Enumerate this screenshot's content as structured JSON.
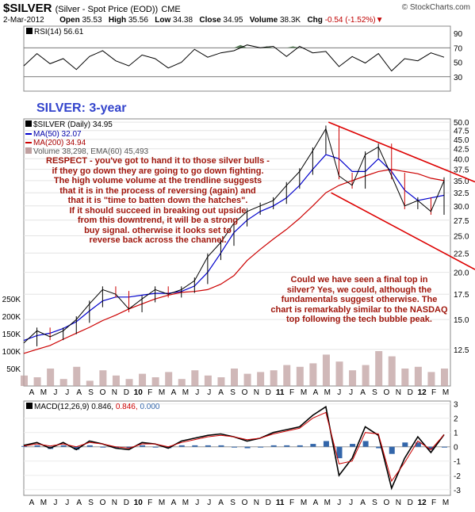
{
  "header": {
    "symbol": "$SILVER",
    "description": "(Silver - Spot Price (EOD))",
    "exchange": "CME",
    "date": "2-Mar-2012",
    "open_label": "Open",
    "open": "35.53",
    "high_label": "High",
    "high": "35.56",
    "low_label": "Low",
    "low": "34.38",
    "close_label": "Close",
    "close": "34.95",
    "volume_label": "Volume",
    "volume": "38.3K",
    "chg_label": "Chg",
    "chg": "-0.54 (-1.52%)",
    "credit": "© StockCharts.com"
  },
  "chart_label": "SILVER: 3-year",
  "rsi_label": "RSI(14) 56.61",
  "legend": {
    "price": "$SILVER (Daily) 34.95",
    "ma50": "MA(50) 32.07",
    "ma200": "MA(200) 34.94",
    "volume": "Volume 38,298, EMA(60) 45,493"
  },
  "macd_label_name": "MACD(12,26,9)",
  "macd_label_v1": "0.846,",
  "macd_label_v2": "0.846,",
  "macd_label_v3": "0.000",
  "annotations": {
    "respect": [
      "RESPECT - you've got to hand it to those silver bulls -",
      "if they go down they are going to go down fighting.",
      "The high volume volume at the trendline suggests",
      "that it is in the process of reversing (again) and",
      "that it is \"time to batten down the hatches\".",
      "If it should succeed in breaking out upside",
      "from this downtrend, it will be a strong",
      "buy signal. otherwise it looks set to",
      "reverse back across the channel."
    ],
    "final_top": [
      "Could we have seen a final top in",
      "silver? Yes, we could, although the",
      "fundamentals suggest otherwise. The",
      "chart is remarkably similar to the NASDAQ",
      "top following the tech bubble peak."
    ]
  },
  "colors": {
    "price": "#000000",
    "up_bar": "#000000",
    "down_bar": "#cc0000",
    "ma50": "#0000cc",
    "ma200": "#cc0000",
    "volume": "#c0a0a0",
    "channel": "#dd0000",
    "rsi_fill": "#557755",
    "macd_hist": "#3366aa",
    "annotation": "#a0180e",
    "chart_label": "#3344cc"
  },
  "chart_data": [
    {
      "type": "line",
      "panel": "rsi",
      "ylim": [
        10,
        100
      ],
      "yticks": [
        "30",
        "50",
        "70",
        "90"
      ],
      "reference_lines": [
        30,
        70
      ],
      "x_index": [
        0,
        5,
        10,
        15,
        20,
        25,
        30,
        35,
        40,
        45,
        50,
        55,
        60,
        65,
        70,
        75,
        80,
        85,
        90,
        95,
        100,
        105,
        110,
        115,
        120,
        125,
        130,
        135,
        140,
        145,
        150,
        155,
        160
      ],
      "values": [
        45,
        62,
        48,
        55,
        40,
        58,
        66,
        52,
        45,
        60,
        55,
        42,
        50,
        68,
        57,
        63,
        66,
        74,
        70,
        72,
        58,
        72,
        63,
        65,
        44,
        58,
        49,
        62,
        38,
        55,
        52,
        63,
        57
      ]
    },
    {
      "type": "line",
      "panel": "price",
      "ylim": [
        10,
        51
      ],
      "yticks": [
        "12.5",
        "15.0",
        "17.5",
        "20.0",
        "22.5",
        "25.0",
        "27.5",
        "30.0",
        "32.5",
        "35.0",
        "37.5",
        "40.0",
        "42.5",
        "45.0",
        "47.5",
        "50.0"
      ],
      "x_labels": [
        "A",
        "M",
        "J",
        "J",
        "A",
        "S",
        "O",
        "N",
        "D",
        "10",
        "F",
        "M",
        "A",
        "M",
        "J",
        "J",
        "A",
        "S",
        "O",
        "N",
        "D",
        "11",
        "F",
        "M",
        "A",
        "M",
        "J",
        "J",
        "A",
        "S",
        "O",
        "N",
        "D",
        "12",
        "F",
        "M"
      ],
      "x_index": [
        0,
        5,
        10,
        15,
        20,
        25,
        30,
        35,
        40,
        45,
        50,
        55,
        60,
        65,
        70,
        75,
        80,
        85,
        90,
        95,
        100,
        105,
        110,
        115,
        120,
        125,
        130,
        135,
        140,
        145,
        150,
        155,
        160
      ],
      "series": [
        {
          "name": "$SILVER (Daily)",
          "values": [
            13,
            14,
            13.5,
            14,
            15,
            16.5,
            18,
            17.5,
            16,
            17,
            18,
            17.5,
            18,
            19,
            22,
            24,
            27,
            29,
            30,
            31,
            34,
            37,
            42,
            48,
            36,
            34,
            41,
            43,
            36,
            30,
            31,
            29,
            35
          ]
        },
        {
          "name": "MA(50)",
          "values": [
            13.2,
            13.6,
            13.8,
            14.2,
            14.8,
            15.8,
            16.8,
            17.2,
            17.2,
            17.4,
            17.6,
            17.6,
            17.8,
            18.4,
            20,
            22.5,
            25.5,
            27.5,
            29,
            30,
            31.5,
            34,
            37.5,
            41,
            40,
            37,
            37,
            40,
            37,
            33,
            31,
            31.5,
            32
          ]
        },
        {
          "name": "MA(200)",
          "values": [
            12.2,
            12.5,
            12.8,
            13.3,
            13.8,
            14.3,
            14.9,
            15.4,
            16,
            16.5,
            17,
            17.4,
            17.7,
            17.8,
            18,
            18.6,
            19.6,
            21.5,
            23,
            24.5,
            26,
            27.8,
            30,
            32.5,
            34,
            35,
            36,
            37,
            37.5,
            37,
            36.5,
            35.5,
            35
          ]
        }
      ],
      "volume_axis_ticks": [
        "50K",
        "100K",
        "150K",
        "200K",
        "250K"
      ],
      "volume_x_index": [
        0,
        5,
        10,
        15,
        20,
        25,
        30,
        35,
        40,
        45,
        50,
        55,
        60,
        65,
        70,
        75,
        80,
        85,
        90,
        95,
        100,
        105,
        110,
        115,
        120,
        125,
        130,
        135,
        140,
        145,
        150,
        155,
        160
      ],
      "volume_values": [
        30,
        25,
        50,
        20,
        55,
        15,
        45,
        30,
        20,
        35,
        25,
        40,
        20,
        45,
        30,
        25,
        50,
        35,
        40,
        45,
        60,
        55,
        65,
        90,
        70,
        45,
        60,
        100,
        85,
        50,
        55,
        40,
        50
      ],
      "channel_upper": [
        [
          116,
          50
        ],
        [
          160,
          37.5
        ]
      ],
      "channel_lower": [
        [
          117,
          32.5
        ],
        [
          160,
          22.5
        ]
      ]
    },
    {
      "type": "line",
      "panel": "macd",
      "ylim": [
        -3.4,
        3.2
      ],
      "yticks": [
        "-3",
        "-2",
        "-1",
        "0",
        "1",
        "2",
        "3"
      ],
      "x_index": [
        0,
        5,
        10,
        15,
        20,
        25,
        30,
        35,
        40,
        45,
        50,
        55,
        60,
        65,
        70,
        75,
        80,
        85,
        90,
        95,
        100,
        105,
        110,
        115,
        120,
        125,
        130,
        135,
        140,
        145,
        150,
        155,
        160
      ],
      "series": [
        {
          "name": "MACD",
          "values": [
            0.1,
            0.3,
            -0.1,
            0.3,
            -0.2,
            0.4,
            0.2,
            -0.1,
            -0.2,
            0.3,
            0.2,
            -0.1,
            0.4,
            0.6,
            0.8,
            0.9,
            0.7,
            0.4,
            0.6,
            1.0,
            1.2,
            1.4,
            2.2,
            2.8,
            -2.0,
            -0.8,
            1.4,
            0.8,
            -2.9,
            -0.8,
            0.7,
            -0.4,
            0.846
          ]
        },
        {
          "name": "Signal",
          "values": [
            0.05,
            0.2,
            0.05,
            0.2,
            0.0,
            0.3,
            0.2,
            0.0,
            -0.1,
            0.2,
            0.2,
            0.0,
            0.3,
            0.5,
            0.7,
            0.8,
            0.7,
            0.5,
            0.6,
            0.9,
            1.1,
            1.3,
            2.0,
            2.4,
            -1.2,
            -1.0,
            1.0,
            0.9,
            -2.4,
            -1.1,
            0.4,
            -0.2,
            0.846
          ]
        },
        {
          "name": "Histogram",
          "values": [
            0.05,
            0.1,
            -0.15,
            0.1,
            -0.2,
            0.1,
            0.0,
            -0.1,
            -0.1,
            0.1,
            0.0,
            -0.1,
            0.1,
            0.1,
            0.1,
            0.1,
            0.0,
            -0.1,
            0.0,
            0.1,
            0.1,
            0.1,
            0.2,
            0.4,
            -0.8,
            0.2,
            0.4,
            -0.1,
            -0.5,
            0.3,
            0.3,
            -0.2,
            0.0
          ]
        }
      ],
      "x_labels": [
        "A",
        "M",
        "J",
        "J",
        "A",
        "S",
        "O",
        "N",
        "D",
        "10",
        "F",
        "M",
        "A",
        "M",
        "J",
        "J",
        "A",
        "S",
        "O",
        "N",
        "D",
        "11",
        "F",
        "M",
        "A",
        "M",
        "J",
        "J",
        "A",
        "S",
        "O",
        "N",
        "D",
        "12",
        "F",
        "M"
      ]
    }
  ]
}
